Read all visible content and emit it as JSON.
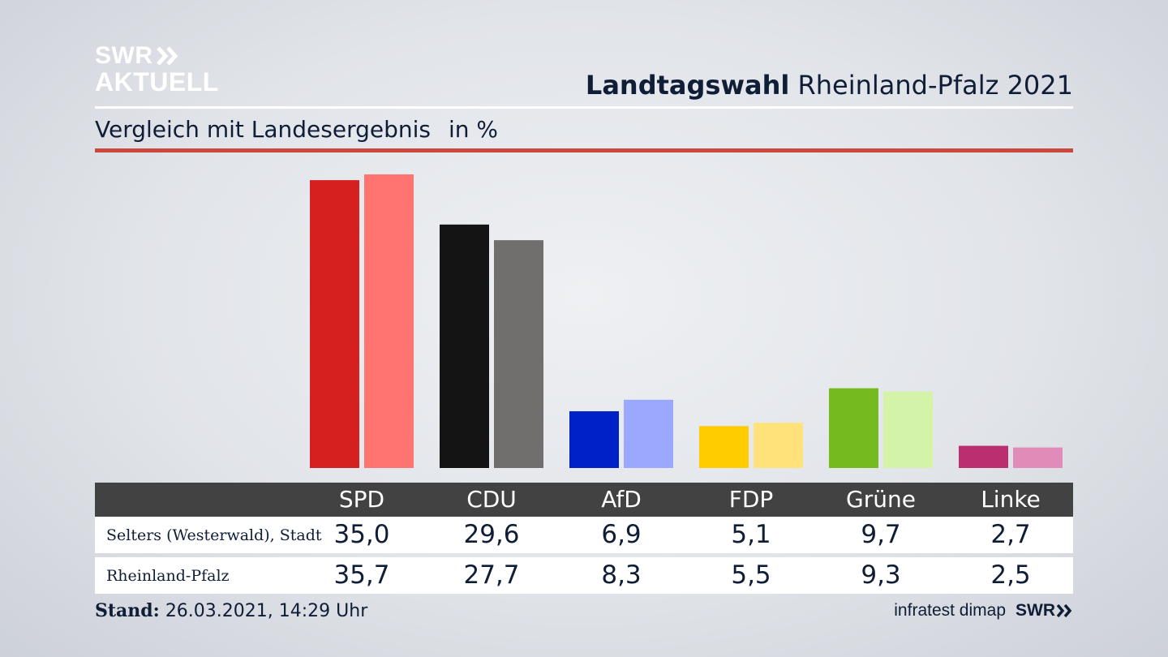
{
  "header": {
    "logo_line1": "SWR",
    "logo_line2": "AKTUELL",
    "title_bold": "Landtagswahl",
    "title_rest": "Rheinland-Pfalz 2021",
    "subtitle": "Vergleich mit Landesergebnis",
    "unit": "in %"
  },
  "colors": {
    "accent_rule": "#c9493c",
    "series_local": [
      "#d61f1f",
      "#141414",
      "#0020c8",
      "#ffcc00",
      "#75bb1f",
      "#bb2f70"
    ],
    "series_state": [
      "#ff7370",
      "#706f6d",
      "#9aa8fd",
      "#ffe37a",
      "#d3f4a8",
      "#e08bb8"
    ]
  },
  "chart_data": {
    "type": "bar",
    "categories": [
      "SPD",
      "CDU",
      "AfD",
      "FDP",
      "Grüne",
      "Linke"
    ],
    "series": [
      {
        "name": "Selters (Westerwald), Stadt",
        "values": [
          35.0,
          29.6,
          6.9,
          5.1,
          9.7,
          2.7
        ]
      },
      {
        "name": "Rheinland-Pfalz",
        "values": [
          35.7,
          27.7,
          8.3,
          5.5,
          9.3,
          2.5
        ]
      }
    ],
    "display_values": [
      [
        "35,0",
        "29,6",
        "6,9",
        "5,1",
        "9,7",
        "2,7"
      ],
      [
        "35,7",
        "27,7",
        "8,3",
        "5,5",
        "9,3",
        "2,5"
      ]
    ],
    "title": "Landtagswahl Rheinland-Pfalz 2021",
    "subtitle": "Vergleich mit Landesergebnis",
    "ylabel": "in %",
    "grid": false,
    "legend": "table-below"
  },
  "footer": {
    "stand_label": "Stand:",
    "stand_value": "26.03.2021, 14:29 Uhr",
    "source": "infratest dimap",
    "brand": "SWR"
  }
}
